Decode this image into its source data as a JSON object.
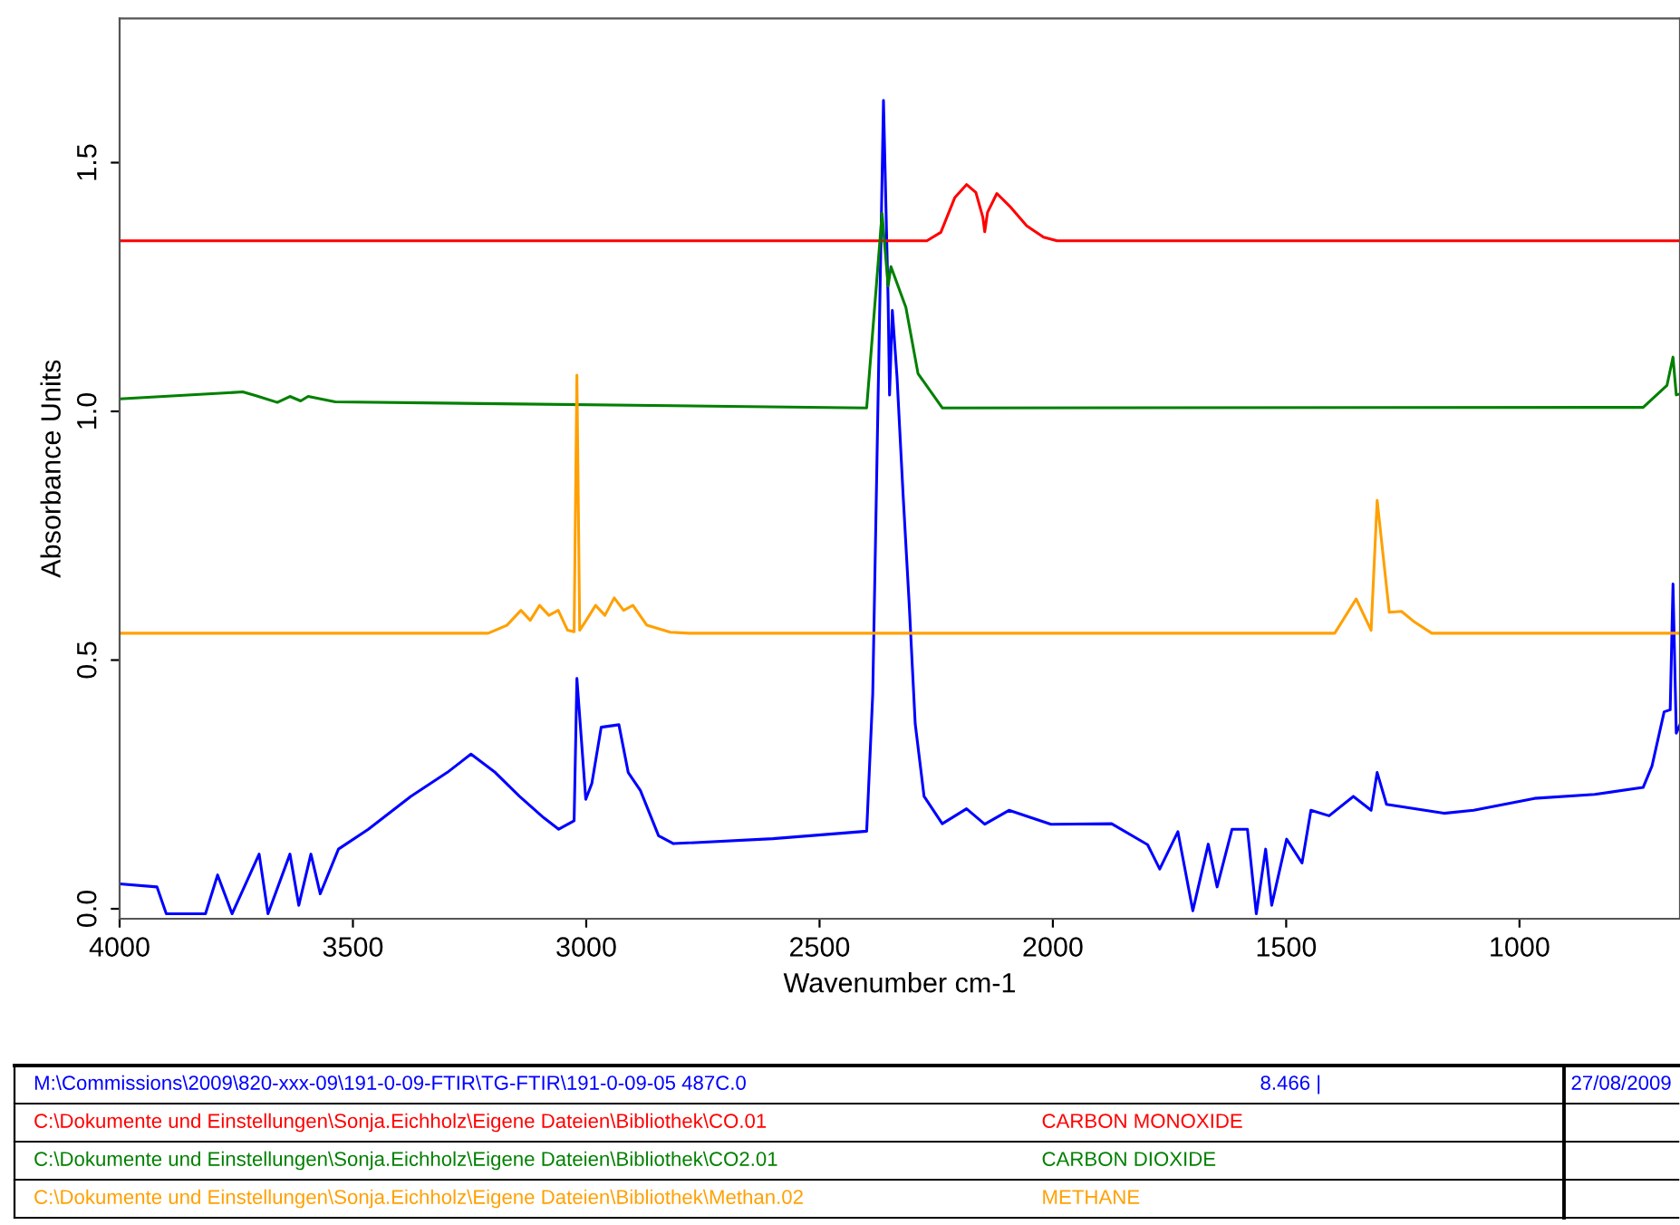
{
  "chart_data": {
    "type": "line",
    "xlabel": "Wavenumber cm-1",
    "ylabel": "Absorbance Units",
    "xlim": [
      4000,
      656
    ],
    "ylim": [
      -0.02,
      1.79
    ],
    "xticks": [
      4000,
      3500,
      3000,
      2500,
      2000,
      1500,
      1000
    ],
    "yticks": [
      {
        "value": 0,
        "label": "0.0"
      },
      {
        "value": 0.5,
        "label": "0.5"
      },
      {
        "value": 1.0,
        "label": "1.0"
      },
      {
        "value": 1.5,
        "label": "1.5"
      }
    ],
    "grid": false,
    "legend": false,
    "marker": "none",
    "line_style": "solid",
    "series": [
      {
        "color": "#0000ff",
        "x": [
          4000,
          3920,
          3900,
          3816,
          3790,
          3759,
          3701,
          3682,
          3635,
          3616,
          3590,
          3570,
          3531,
          3467,
          3376,
          3298,
          3247,
          3195,
          3143,
          3091,
          3059,
          3026,
          3020,
          3001,
          2988,
          2968,
          2930,
          2910,
          2884,
          2845,
          2813,
          2600,
          2399,
          2386,
          2363,
          2353,
          2350,
          2344,
          2334,
          2321,
          2308,
          2295,
          2276,
          2237,
          2185,
          2146,
          2094,
          2004,
          1874,
          1797,
          1771,
          1732,
          1700,
          1667,
          1648,
          1616,
          1583,
          1564,
          1544,
          1531,
          1499,
          1466,
          1447,
          1408,
          1356,
          1318,
          1305,
          1285,
          1162,
          1098,
          968,
          839,
          735,
          716,
          690,
          677,
          671,
          664,
          656
        ],
        "values": [
          0.05,
          0.044,
          -0.01,
          -0.01,
          0.068,
          -0.01,
          0.11,
          -0.01,
          0.11,
          0.007,
          0.11,
          0.03,
          0.12,
          0.16,
          0.226,
          0.274,
          0.311,
          0.274,
          0.226,
          0.183,
          0.16,
          0.177,
          0.463,
          0.22,
          0.252,
          0.365,
          0.37,
          0.274,
          0.238,
          0.147,
          0.131,
          0.141,
          0.156,
          0.432,
          1.625,
          1.222,
          1.033,
          1.203,
          1.07,
          0.833,
          0.615,
          0.372,
          0.226,
          0.171,
          0.201,
          0.17,
          0.198,
          0.17,
          0.171,
          0.129,
          0.08,
          0.155,
          -0.004,
          0.13,
          0.044,
          0.16,
          0.16,
          -0.01,
          0.12,
          0.007,
          0.14,
          0.092,
          0.198,
          0.187,
          0.226,
          0.198,
          0.274,
          0.21,
          0.192,
          0.198,
          0.222,
          0.23,
          0.244,
          0.287,
          0.396,
          0.4,
          0.653,
          0.353,
          0.37
        ]
      },
      {
        "name": "CARBON MONOXIDE",
        "color": "#ff0000",
        "x": [
          4000,
          2270,
          2240,
          2210,
          2185,
          2165,
          2150,
          2146,
          2140,
          2120,
          2090,
          2056,
          2020,
          1991,
          656
        ],
        "values": [
          1.343,
          1.343,
          1.36,
          1.43,
          1.456,
          1.44,
          1.39,
          1.361,
          1.4,
          1.438,
          1.41,
          1.373,
          1.35,
          1.343,
          1.343
        ]
      },
      {
        "name": "CARBON DIOXIDE",
        "color": "#008000",
        "x": [
          4000,
          3736,
          3706,
          3662,
          3635,
          3612,
          3596,
          3538,
          2399,
          2366,
          2353,
          2347,
          2315,
          2289,
          2237,
          735,
          684,
          671,
          664,
          656
        ],
        "values": [
          1.025,
          1.039,
          1.031,
          1.018,
          1.03,
          1.021,
          1.03,
          1.019,
          1.007,
          1.398,
          1.252,
          1.291,
          1.209,
          1.076,
          1.007,
          1.008,
          1.052,
          1.109,
          1.033,
          1.035
        ]
      },
      {
        "name": "METHANE",
        "color": "#ffa000",
        "x": [
          4000,
          3210,
          3170,
          3140,
          3120,
          3100,
          3080,
          3060,
          3040,
          3026,
          3020,
          3014,
          3000,
          2980,
          2960,
          2940,
          2920,
          2900,
          2870,
          2820,
          2780,
          1396,
          1350,
          1318,
          1305,
          1279,
          1253,
          1227,
          1188,
          656
        ],
        "values": [
          0.554,
          0.554,
          0.57,
          0.6,
          0.58,
          0.61,
          0.59,
          0.6,
          0.56,
          0.557,
          1.073,
          0.56,
          0.58,
          0.61,
          0.59,
          0.625,
          0.6,
          0.61,
          0.57,
          0.556,
          0.554,
          0.554,
          0.623,
          0.56,
          0.821,
          0.596,
          0.598,
          0.578,
          0.554,
          0.554
        ]
      }
    ],
    "annotations": [
      "M:\\Commissions\\2009\\820-xxx-09\\191-0-09-FTIR\\TG-FTIR\\191-0-09-05 487C.0",
      "8.466 |",
      "27/08/2009",
      "C:\\Dokumente und Einstellungen\\Sonja.Eichholz\\Eigene Dateien\\Bibliothek\\CO.01",
      "C:\\Dokumente und Einstellungen\\Sonja.Eichholz\\Eigene Dateien\\Bibliothek\\CO2.01",
      "C:\\Dokumente und Einstellungen\\Sonja.Eichholz\\Eigene Dateien\\Bibliothek\\Methan.02"
    ]
  }
}
